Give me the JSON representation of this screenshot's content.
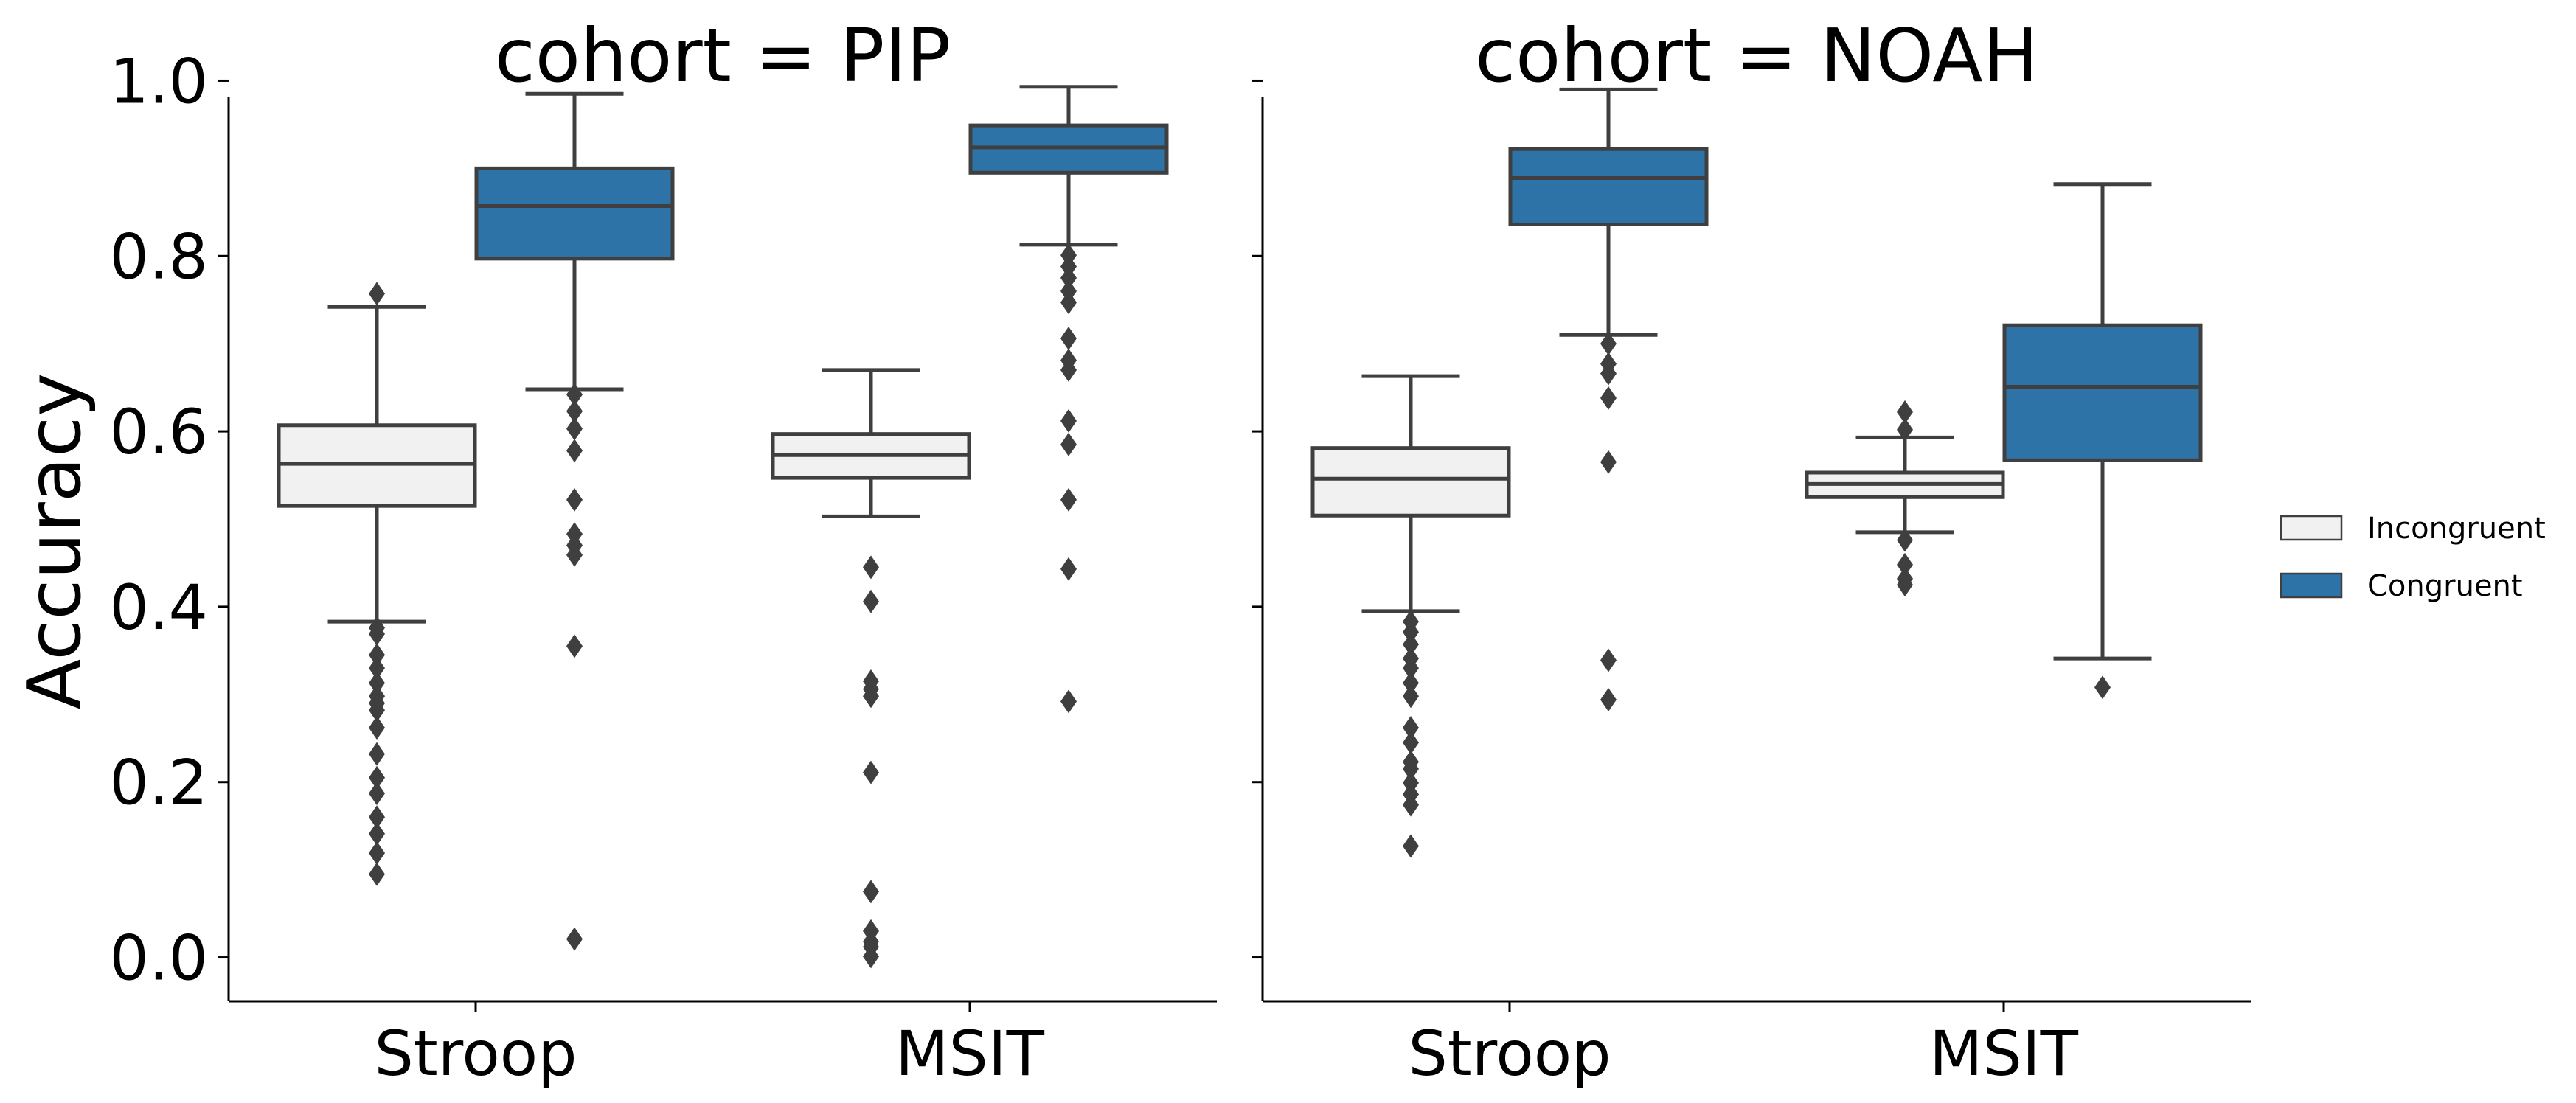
{
  "chart_data": {
    "type": "box",
    "ylabel": "Accuracy",
    "ylim": [
      -0.05,
      1.05
    ],
    "yticks": [
      0.0,
      0.2,
      0.4,
      0.6,
      0.8,
      1.0
    ],
    "ytick_labels": [
      "0.0",
      "0.2",
      "0.4",
      "0.6",
      "0.8",
      "1.0"
    ],
    "categories": [
      "Stroop",
      "MSIT"
    ],
    "legend": {
      "placement": "right",
      "entries": [
        {
          "label": "Incongruent",
          "color": "#f1f1f2"
        },
        {
          "label": "Congruent",
          "color": "#2e73a8"
        }
      ]
    },
    "edge_color": "#3f3f3f",
    "panels": [
      {
        "title": "cohort = PIP",
        "boxes": [
          {
            "category": "Stroop",
            "series": "Incongruent",
            "whisker_low": 0.383,
            "q1": 0.515,
            "median": 0.563,
            "q3": 0.607,
            "whisker_high": 0.742,
            "outliers": [
              0.757,
              0.376,
              0.369,
              0.345,
              0.33,
              0.313,
              0.298,
              0.29,
              0.282,
              0.262,
              0.232,
              0.205,
              0.187,
              0.16,
              0.141,
              0.119,
              0.095
            ]
          },
          {
            "category": "Stroop",
            "series": "Congruent",
            "whisker_low": 0.648,
            "q1": 0.797,
            "median": 0.857,
            "q3": 0.9,
            "whisker_high": 0.985,
            "outliers": [
              0.642,
              0.623,
              0.603,
              0.578,
              0.522,
              0.483,
              0.47,
              0.459,
              0.355,
              0.021
            ]
          },
          {
            "category": "MSIT",
            "series": "Incongruent",
            "whisker_low": 0.503,
            "q1": 0.547,
            "median": 0.573,
            "q3": 0.597,
            "whisker_high": 0.67,
            "outliers": [
              0.445,
              0.406,
              0.315,
              0.306,
              0.298,
              0.211,
              0.075,
              0.03,
              0.018,
              0.012,
              0.001
            ]
          },
          {
            "category": "MSIT",
            "series": "Congruent",
            "whisker_low": 0.813,
            "q1": 0.895,
            "median": 0.924,
            "q3": 0.949,
            "whisker_high": 0.993,
            "outliers": [
              0.801,
              0.788,
              0.775,
              0.76,
              0.747,
              0.706,
              0.681,
              0.67,
              0.612,
              0.585,
              0.522,
              0.443,
              0.292
            ]
          }
        ]
      },
      {
        "title": "cohort = NOAH",
        "boxes": [
          {
            "category": "Stroop",
            "series": "Incongruent",
            "whisker_low": 0.395,
            "q1": 0.504,
            "median": 0.546,
            "q3": 0.581,
            "whisker_high": 0.663,
            "outliers": [
              0.383,
              0.371,
              0.357,
              0.341,
              0.33,
              0.313,
              0.298,
              0.262,
              0.245,
              0.223,
              0.215,
              0.199,
              0.186,
              0.174,
              0.127
            ]
          },
          {
            "category": "Stroop",
            "series": "Congruent",
            "whisker_low": 0.71,
            "q1": 0.836,
            "median": 0.889,
            "q3": 0.922,
            "whisker_high": 0.99,
            "outliers": [
              0.7,
              0.677,
              0.666,
              0.638,
              0.565,
              0.339,
              0.294
            ]
          },
          {
            "category": "MSIT",
            "series": "Incongruent",
            "whisker_low": 0.485,
            "q1": 0.525,
            "median": 0.54,
            "q3": 0.553,
            "whisker_high": 0.593,
            "outliers": [
              0.622,
              0.602,
              0.476,
              0.448,
              0.432,
              0.425
            ]
          },
          {
            "category": "MSIT",
            "series": "Congruent",
            "whisker_low": 0.341,
            "q1": 0.567,
            "median": 0.651,
            "q3": 0.721,
            "whisker_high": 0.882,
            "outliers": [
              0.308
            ]
          }
        ]
      }
    ]
  }
}
